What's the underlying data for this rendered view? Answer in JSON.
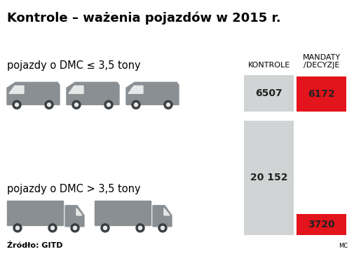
{
  "title": "Kontrole – ważenia pojazdów w 2015 r.",
  "source": "Źródło: GITD",
  "credit": "MC",
  "chart_data": [
    {
      "type": "bar",
      "title": "pojazdy o DMC ≤ 3,5 tony",
      "categories": [
        "KONTROLE",
        "MANDATY /DECYZJE"
      ],
      "values": [
        6507,
        6172
      ],
      "colors": [
        "#d1d4d4",
        "#e3141b"
      ],
      "data_labels": true,
      "tick_labels": false
    },
    {
      "type": "bar",
      "title": "pojazdy o DMC > 3,5 tony",
      "categories": [
        "KONTROLE",
        "MANDATY /DECYZJE"
      ],
      "values": [
        20152,
        3720
      ],
      "value_labels": [
        "20 152",
        "3720"
      ],
      "colors": [
        "#d1d4d4",
        "#e3141b"
      ],
      "data_labels": true,
      "tick_labels": false
    }
  ]
}
